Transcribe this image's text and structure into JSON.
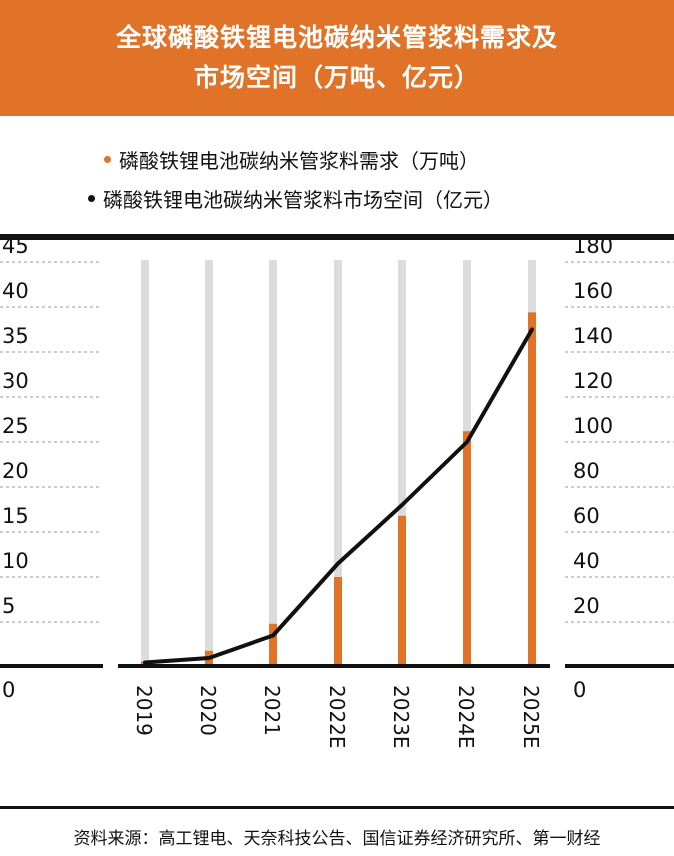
{
  "header": {
    "title_line1": "全球磷酸铁锂电池碳纳米管浆料需求及",
    "title_line2": "市场空间（万吨、亿元）"
  },
  "colors": {
    "header_bg": "#e07328",
    "bar": "#e07328",
    "line": "#111111",
    "column_band": "#dcdcdc"
  },
  "chart_data": {
    "type": "bar",
    "categories": [
      "2019",
      "2020",
      "2021",
      "2022E",
      "2023E",
      "2024E",
      "2025E"
    ],
    "series": [
      {
        "name": "磷酸铁锂电池碳纳米管浆料需求（万吨）",
        "type": "bar",
        "axis": "left",
        "color": "#e07328",
        "values": [
          0.6,
          1.8,
          4.8,
          10.0,
          16.8,
          26.2,
          39.4
        ]
      },
      {
        "name": "磷酸铁锂电池碳纳米管浆料市场空间（亿元）",
        "type": "line",
        "axis": "right",
        "color": "#111111",
        "values": [
          2,
          4,
          14,
          46,
          72,
          100,
          150
        ]
      }
    ],
    "y_left": {
      "ylim": [
        0,
        45
      ],
      "ticks": [
        "0",
        "5",
        "10",
        "15",
        "20",
        "25",
        "30",
        "35",
        "40",
        "45"
      ]
    },
    "y_right": {
      "ylim": [
        0,
        180
      ],
      "ticks": [
        "0",
        "20",
        "40",
        "60",
        "80",
        "100",
        "120",
        "140",
        "160",
        "180"
      ]
    },
    "grid": true,
    "legend_position": "top"
  },
  "source": "资料来源：高工锂电、天奈科技公告、国信证券经济研究所、第一财经"
}
